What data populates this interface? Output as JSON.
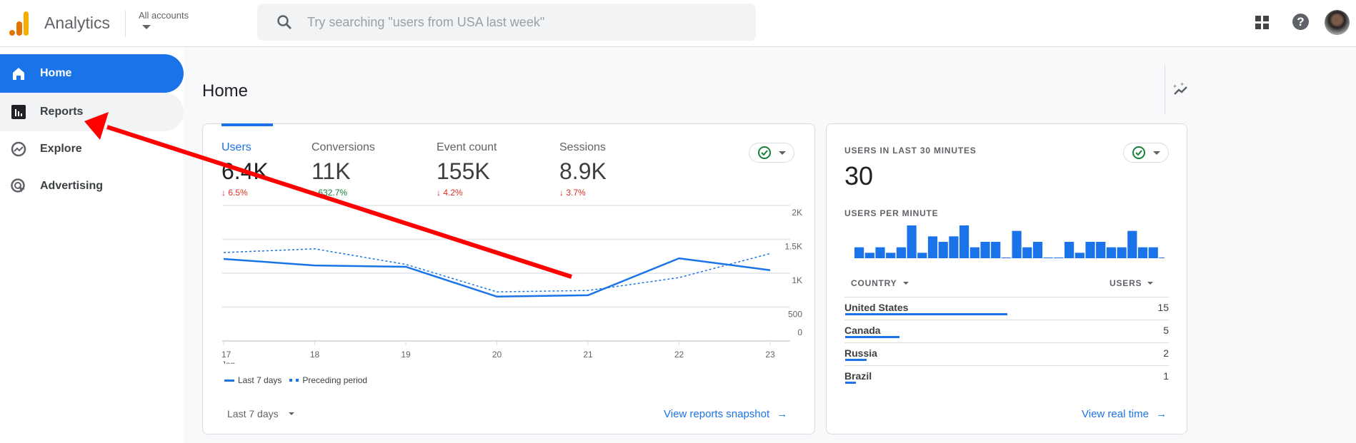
{
  "header": {
    "app_name": "Analytics",
    "account_label": "All accounts",
    "search_placeholder": "Try searching \"users from USA last week\""
  },
  "sidebar": {
    "items": [
      {
        "label": "Home",
        "icon": "home-icon"
      },
      {
        "label": "Reports",
        "icon": "bar-chart-icon"
      },
      {
        "label": "Explore",
        "icon": "explore-icon"
      },
      {
        "label": "Advertising",
        "icon": "advertising-icon"
      }
    ]
  },
  "page": {
    "title": "Home"
  },
  "colors": {
    "accent": "#1a73e8",
    "down": "#d93025",
    "up": "#188038",
    "arrow": "#ff0000"
  },
  "overview": {
    "metrics": [
      {
        "label": "Users",
        "value": "6.4K",
        "change": "6.5%",
        "direction": "down"
      },
      {
        "label": "Conversions",
        "value": "11K",
        "change": "632.7%",
        "direction": "up"
      },
      {
        "label": "Event count",
        "value": "155K",
        "change": "4.2%",
        "direction": "down"
      },
      {
        "label": "Sessions",
        "value": "8.9K",
        "change": "3.7%",
        "direction": "down"
      }
    ],
    "date_range": "Last 7 days",
    "link": "View reports snapshot"
  },
  "chart_data": [
    {
      "type": "line",
      "x": [
        "17",
        "18",
        "19",
        "20",
        "21",
        "22",
        "23"
      ],
      "x_sublabel": "Jan",
      "yticks": [
        "0",
        "500",
        "1K",
        "1.5K",
        "2K"
      ],
      "ylim": [
        0,
        2000
      ],
      "grid": true,
      "legend": "bottom-left",
      "series": [
        {
          "name": "Last 7 days",
          "style": "solid",
          "values": [
            1210,
            1115,
            1095,
            655,
            675,
            1220,
            1045
          ]
        },
        {
          "name": "Preceding period",
          "style": "dashed",
          "values": [
            1305,
            1360,
            1130,
            725,
            745,
            935,
            1290
          ]
        }
      ]
    },
    {
      "type": "bar",
      "title": "USERS PER MINUTE",
      "values": [
        2,
        1,
        2,
        1,
        2,
        6,
        1,
        4,
        3,
        4,
        6,
        2,
        3,
        3,
        0,
        5,
        2,
        3,
        0,
        0,
        3,
        1,
        3,
        3,
        2,
        2,
        5,
        2,
        2,
        0
      ]
    }
  ],
  "realtime": {
    "title": "USERS IN LAST 30 MINUTES",
    "value": "30",
    "per_minute_label": "USERS PER MINUTE",
    "col_country": "COUNTRY",
    "col_users": "USERS",
    "rows": [
      {
        "country": "United States",
        "users": "15",
        "share": 15
      },
      {
        "country": "Canada",
        "users": "5",
        "share": 5
      },
      {
        "country": "Russia",
        "users": "2",
        "share": 2
      },
      {
        "country": "Brazil",
        "users": "1",
        "share": 1
      }
    ],
    "link": "View real time"
  }
}
